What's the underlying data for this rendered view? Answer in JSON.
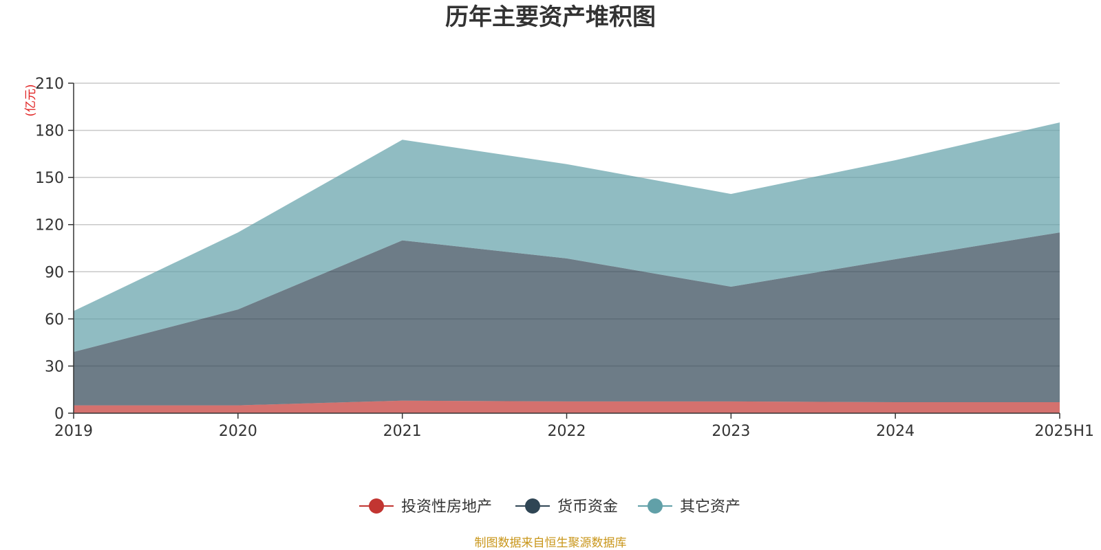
{
  "chart_data": {
    "type": "area",
    "stacked": true,
    "title": "历年主要资产堆积图",
    "ylabel": "(亿元)",
    "xlabel": "",
    "categories": [
      "2019",
      "2020",
      "2021",
      "2022",
      "2023",
      "2024",
      "2025H1"
    ],
    "ylim": [
      0,
      210
    ],
    "yticks": [
      0,
      30,
      60,
      90,
      120,
      150,
      180,
      210
    ],
    "grid": true,
    "legend_position": "bottom-center",
    "series": [
      {
        "name": "投资性房地产",
        "color": "#c23531",
        "values": [
          5,
          5,
          8,
          7.5,
          7.5,
          7,
          7
        ]
      },
      {
        "name": "货币资金",
        "color": "#2f4554",
        "values": [
          34,
          61,
          102,
          91,
          73,
          91,
          108
        ]
      },
      {
        "name": "其它资产",
        "color": "#61a0a8",
        "values": [
          26,
          49,
          64,
          60,
          59,
          63,
          70
        ]
      }
    ]
  },
  "source_note": "制图数据来自恒生聚源数据库"
}
